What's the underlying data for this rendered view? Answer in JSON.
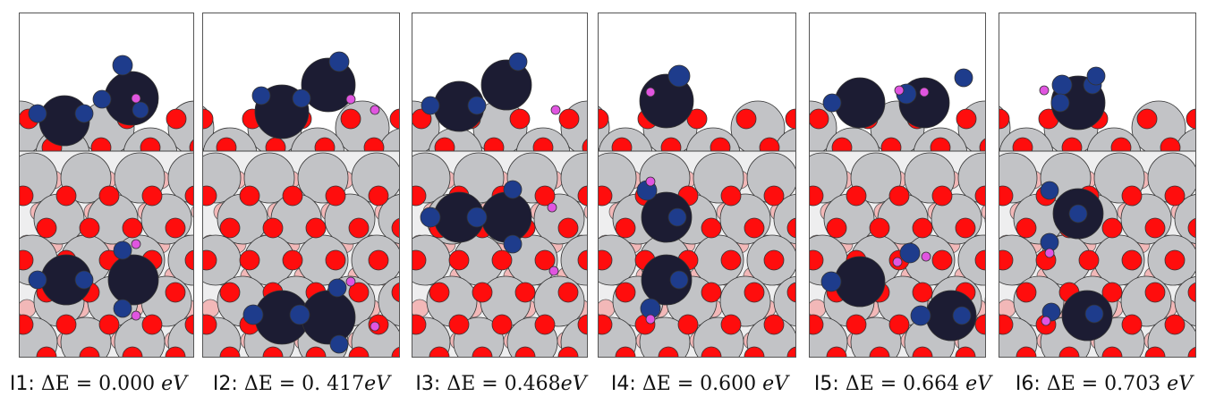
{
  "colors": {
    "surface_atom": "#c2c3c6",
    "oxygen": "#ff0d0d",
    "large_adatom": "#1c1c33",
    "blue_atom": "#1e3c8c",
    "hydrogen": "#e055e0",
    "border": "#555555"
  },
  "panels": [
    {
      "id": "I1",
      "label": "I1:",
      "expr": "ΔE = 0.000 ",
      "unit": "eV"
    },
    {
      "id": "I2",
      "label": "I2:",
      "expr": "ΔE = 0. 417",
      "unit": "eV"
    },
    {
      "id": "I3",
      "label": "I3:",
      "expr": "ΔE = 0.468",
      "unit": "eV"
    },
    {
      "id": "I4",
      "label": "I4:",
      "expr": "ΔE = 0.600 ",
      "unit": "eV"
    },
    {
      "id": "I5",
      "label": "I5:",
      "expr": "ΔE = 0.664 ",
      "unit": "eV"
    },
    {
      "id": "I6",
      "label": "I6:",
      "expr": "ΔE = 0.703 ",
      "unit": "eV"
    }
  ]
}
